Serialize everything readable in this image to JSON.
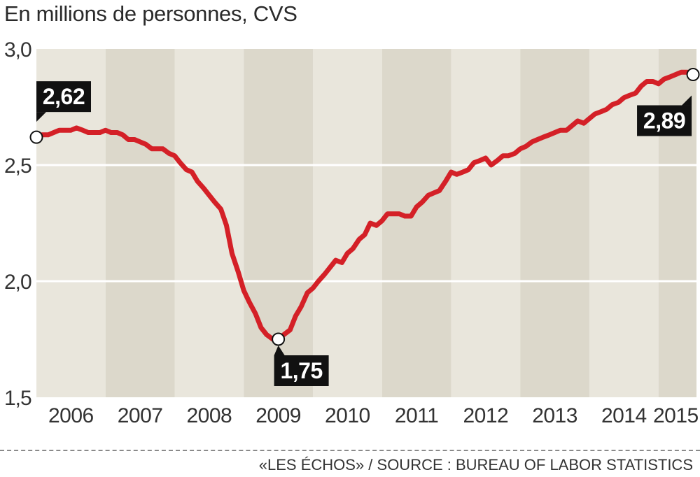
{
  "chart_data": {
    "type": "line",
    "subtitle": "En millions de personnes, CVS",
    "source": "«LES ÉCHOS» / SOURCE : BUREAU OF LABOR STATISTICS",
    "ylim": [
      1.5,
      3.0
    ],
    "yticks": [
      {
        "value": 1.5,
        "label": "1,5"
      },
      {
        "value": 2.0,
        "label": "2,0"
      },
      {
        "value": 2.5,
        "label": "2,5"
      },
      {
        "value": 3.0,
        "label": "3,0"
      }
    ],
    "xlim": [
      2006.0,
      2015.55
    ],
    "year_bands": [
      2006,
      2007,
      2008,
      2009,
      2010,
      2011,
      2012,
      2013,
      2014,
      2015
    ],
    "xticks": [
      {
        "value": 2006.5,
        "label": "2006"
      },
      {
        "value": 2007.5,
        "label": "2007"
      },
      {
        "value": 2008.5,
        "label": "2008"
      },
      {
        "value": 2009.5,
        "label": "2009"
      },
      {
        "value": 2010.5,
        "label": "2010"
      },
      {
        "value": 2011.5,
        "label": "2011"
      },
      {
        "value": 2012.5,
        "label": "2012"
      },
      {
        "value": 2013.5,
        "label": "2013"
      },
      {
        "value": 2014.5,
        "label": "2014"
      },
      {
        "value": 2015.25,
        "label": "2015"
      }
    ],
    "grid": "horizontal",
    "colors": {
      "line": "#d42027",
      "band_light": "#e9e6dc",
      "band_dark": "#dcd8cb",
      "label_bg": "#111111"
    },
    "series": [
      {
        "points": [
          [
            2006.0,
            2.62
          ],
          [
            2006.08,
            2.63
          ],
          [
            2006.17,
            2.63
          ],
          [
            2006.25,
            2.64
          ],
          [
            2006.33,
            2.65
          ],
          [
            2006.42,
            2.65
          ],
          [
            2006.5,
            2.65
          ],
          [
            2006.58,
            2.66
          ],
          [
            2006.67,
            2.65
          ],
          [
            2006.75,
            2.64
          ],
          [
            2006.83,
            2.64
          ],
          [
            2006.92,
            2.64
          ],
          [
            2007.0,
            2.65
          ],
          [
            2007.08,
            2.64
          ],
          [
            2007.17,
            2.64
          ],
          [
            2007.25,
            2.63
          ],
          [
            2007.33,
            2.61
          ],
          [
            2007.42,
            2.61
          ],
          [
            2007.5,
            2.6
          ],
          [
            2007.58,
            2.59
          ],
          [
            2007.67,
            2.57
          ],
          [
            2007.75,
            2.57
          ],
          [
            2007.83,
            2.57
          ],
          [
            2007.92,
            2.55
          ],
          [
            2008.0,
            2.54
          ],
          [
            2008.08,
            2.51
          ],
          [
            2008.17,
            2.48
          ],
          [
            2008.25,
            2.47
          ],
          [
            2008.33,
            2.43
          ],
          [
            2008.42,
            2.4
          ],
          [
            2008.5,
            2.37
          ],
          [
            2008.58,
            2.34
          ],
          [
            2008.67,
            2.31
          ],
          [
            2008.75,
            2.24
          ],
          [
            2008.83,
            2.12
          ],
          [
            2008.92,
            2.04
          ],
          [
            2009.0,
            1.96
          ],
          [
            2009.08,
            1.91
          ],
          [
            2009.17,
            1.86
          ],
          [
            2009.25,
            1.8
          ],
          [
            2009.33,
            1.77
          ],
          [
            2009.42,
            1.75
          ],
          [
            2009.5,
            1.75
          ],
          [
            2009.58,
            1.77
          ],
          [
            2009.67,
            1.79
          ],
          [
            2009.75,
            1.85
          ],
          [
            2009.83,
            1.89
          ],
          [
            2009.92,
            1.95
          ],
          [
            2010.0,
            1.97
          ],
          [
            2010.08,
            2.0
          ],
          [
            2010.17,
            2.03
          ],
          [
            2010.25,
            2.06
          ],
          [
            2010.33,
            2.09
          ],
          [
            2010.42,
            2.08
          ],
          [
            2010.5,
            2.12
          ],
          [
            2010.58,
            2.14
          ],
          [
            2010.67,
            2.18
          ],
          [
            2010.75,
            2.2
          ],
          [
            2010.83,
            2.25
          ],
          [
            2010.92,
            2.24
          ],
          [
            2011.0,
            2.26
          ],
          [
            2011.08,
            2.29
          ],
          [
            2011.17,
            2.29
          ],
          [
            2011.25,
            2.29
          ],
          [
            2011.33,
            2.28
          ],
          [
            2011.42,
            2.28
          ],
          [
            2011.5,
            2.32
          ],
          [
            2011.58,
            2.34
          ],
          [
            2011.67,
            2.37
          ],
          [
            2011.75,
            2.38
          ],
          [
            2011.83,
            2.39
          ],
          [
            2011.92,
            2.43
          ],
          [
            2012.0,
            2.47
          ],
          [
            2012.08,
            2.46
          ],
          [
            2012.17,
            2.47
          ],
          [
            2012.25,
            2.48
          ],
          [
            2012.33,
            2.51
          ],
          [
            2012.42,
            2.52
          ],
          [
            2012.5,
            2.53
          ],
          [
            2012.58,
            2.5
          ],
          [
            2012.67,
            2.52
          ],
          [
            2012.75,
            2.54
          ],
          [
            2012.83,
            2.54
          ],
          [
            2012.92,
            2.55
          ],
          [
            2013.0,
            2.57
          ],
          [
            2013.08,
            2.58
          ],
          [
            2013.17,
            2.6
          ],
          [
            2013.25,
            2.61
          ],
          [
            2013.33,
            2.62
          ],
          [
            2013.42,
            2.63
          ],
          [
            2013.5,
            2.64
          ],
          [
            2013.58,
            2.65
          ],
          [
            2013.67,
            2.65
          ],
          [
            2013.75,
            2.67
          ],
          [
            2013.83,
            2.69
          ],
          [
            2013.92,
            2.68
          ],
          [
            2014.0,
            2.7
          ],
          [
            2014.08,
            2.72
          ],
          [
            2014.17,
            2.73
          ],
          [
            2014.25,
            2.74
          ],
          [
            2014.33,
            2.76
          ],
          [
            2014.42,
            2.77
          ],
          [
            2014.5,
            2.79
          ],
          [
            2014.58,
            2.8
          ],
          [
            2014.67,
            2.81
          ],
          [
            2014.75,
            2.84
          ],
          [
            2014.83,
            2.86
          ],
          [
            2014.92,
            2.86
          ],
          [
            2015.0,
            2.85
          ],
          [
            2015.08,
            2.87
          ],
          [
            2015.17,
            2.88
          ],
          [
            2015.25,
            2.89
          ],
          [
            2015.33,
            2.9
          ],
          [
            2015.42,
            2.9
          ],
          [
            2015.5,
            2.89
          ]
        ]
      }
    ],
    "annotations": [
      {
        "label": "2,62",
        "x": 2006.0,
        "y": 2.62,
        "position": "above-right"
      },
      {
        "label": "1,75",
        "x": 2009.5,
        "y": 1.75,
        "position": "below"
      },
      {
        "label": "2,89",
        "x": 2015.5,
        "y": 2.89,
        "position": "below-left"
      }
    ]
  }
}
